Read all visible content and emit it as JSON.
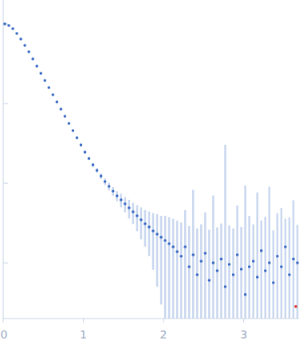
{
  "chart_data": {
    "type": "scatter",
    "log": "y",
    "tick_labels": "x",
    "grid": false,
    "xlim": [
      0,
      3.69
    ],
    "ylim": [
      2e-05,
      0.2
    ],
    "xticks": [
      0,
      1,
      2,
      3
    ],
    "yticks": [
      0.0001,
      0.001,
      0.01,
      0.1
    ],
    "x": [
      0.02,
      0.07,
      0.12,
      0.17,
      0.22,
      0.27,
      0.32,
      0.37,
      0.42,
      0.47,
      0.52,
      0.57,
      0.62,
      0.67,
      0.72,
      0.77,
      0.82,
      0.87,
      0.92,
      0.97,
      1.02,
      1.07,
      1.12,
      1.17,
      1.22,
      1.27,
      1.32,
      1.37,
      1.42,
      1.47,
      1.52,
      1.57,
      1.62,
      1.67,
      1.72,
      1.77,
      1.82,
      1.87,
      1.92,
      1.97,
      2.02,
      2.07,
      2.12,
      2.17,
      2.22,
      2.27,
      2.32,
      2.37,
      2.42,
      2.47,
      2.52,
      2.57,
      2.62,
      2.67,
      2.72,
      2.77,
      2.82,
      2.87,
      2.92,
      2.97,
      3.02,
      3.07,
      3.12,
      3.17,
      3.22,
      3.27,
      3.32,
      3.37,
      3.42,
      3.47,
      3.52,
      3.57,
      3.62,
      3.67
    ],
    "series": [
      {
        "color": "#3a6bc4",
        "marker": "circle",
        "values": [
          0.1,
          0.0957,
          0.0873,
          0.076,
          0.0647,
          0.0538,
          0.0448,
          0.0364,
          0.0296,
          0.024,
          0.0195,
          0.0159,
          0.0129,
          0.0105,
          0.00854,
          0.00694,
          0.00564,
          0.00458,
          0.00372,
          0.00302,
          0.00246,
          0.00205,
          0.0017,
          0.00145,
          0.00123,
          0.00105,
          0.000914,
          0.000796,
          0.000693,
          0.000618,
          0.00055,
          0.00049,
          0.000438,
          0.00039,
          0.000348,
          0.00031,
          0.000282,
          0.000252,
          0.00023,
          0.00021,
          0.000191,
          0.000174,
          0.000159,
          0.000138,
          0.000121,
          0.000159,
          8.94e-05,
          0.000126,
          7.1e-05,
          0.000105,
          0.000132,
          6.04e-05,
          0.0001,
          7.96e-05,
          0.000112,
          5.02e-05,
          9.58e-05,
          7.1e-05,
          0.000126,
          8.34e-05,
          4e-05,
          8.94e-05,
          0.000105,
          6.62e-05,
          0.000142,
          7.96e-05,
          0.0001,
          5.64e-05,
          0.000121,
          8.94e-05,
          0.000159,
          7.1e-05,
          0.000112,
          0.0001
        ],
        "errors": [
          0.001,
          0.001,
          0.0009,
          0.0008,
          0.0006,
          0.0005,
          0.0004,
          0.0004,
          0.0003,
          0.0003,
          0.0002,
          0.0002,
          0.0002,
          0.0002,
          0.0002,
          0.0001,
          0.0001,
          0.0001,
          0.0001,
          0.0001,
          0.0001,
          0.0001,
          0.0001,
          0.0001,
          0.0001,
          0.0001,
          0.0001,
          0.0001,
          0.0001,
          0.00012,
          0.00012,
          0.00013,
          0.00013,
          0.00014,
          0.00015,
          0.00015,
          0.00016,
          0.00017,
          0.00018,
          0.00018,
          0.0002,
          0.0002,
          0.0002,
          0.0002,
          0.0002,
          0.0003,
          0.0002,
          0.0007,
          0.0002,
          0.0002,
          0.0003,
          0.0002,
          0.0006,
          0.0002,
          0.0002,
          0.003,
          0.0002,
          0.0002,
          0.0004,
          0.0002,
          0.0009,
          0.0003,
          0.0002,
          0.0007,
          0.0002,
          0.0003,
          0.0008,
          0.0002,
          0.0003,
          0.0004,
          0.0002,
          0.0003,
          0.0005,
          0.0002
        ]
      },
      {
        "color": "#e03030",
        "marker": "circle",
        "x": [
          3.65
        ],
        "values": [
          2.83e-05
        ]
      }
    ]
  }
}
